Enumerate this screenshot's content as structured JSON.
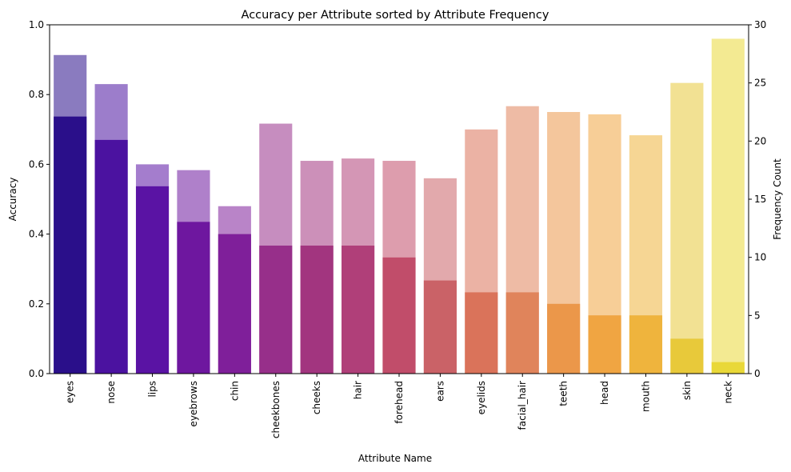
{
  "chart_data": {
    "type": "bar",
    "title": "Accuracy per Attribute sorted by Attribute Frequency",
    "xlabel": "Attribute Name",
    "ylabel": "Accuracy",
    "y2label": "Frequency Count",
    "categories": [
      "eyes",
      "nose",
      "lips",
      "eyebrows",
      "chin",
      "cheekbones",
      "cheeks",
      "hair",
      "forehead",
      "ears",
      "eyelids",
      "facial_hair",
      "teeth",
      "head",
      "mouth",
      "skin",
      "neck"
    ],
    "series": [
      {
        "name": "Accuracy",
        "axis": "left",
        "values": [
          0.737,
          0.67,
          0.537,
          0.435,
          0.4,
          0.367,
          0.367,
          0.367,
          0.333,
          0.267,
          0.233,
          0.233,
          0.2,
          0.167,
          0.167,
          0.1,
          0.033
        ]
      },
      {
        "name": "Frequency Count",
        "axis": "right",
        "values": [
          27.4,
          24.9,
          18.0,
          17.5,
          14.4,
          21.5,
          18.3,
          18.5,
          18.3,
          16.8,
          21.0,
          23.0,
          22.5,
          22.3,
          20.5,
          25.0,
          28.8
        ]
      }
    ],
    "ylim": [
      0,
      1.0
    ],
    "y2lim": [
      0,
      30
    ],
    "yticks": [
      0.0,
      0.2,
      0.4,
      0.6,
      0.8,
      1.0
    ],
    "y2ticks": [
      0,
      5,
      10,
      15,
      20,
      25,
      30
    ],
    "grid": false,
    "legend": "none",
    "colors": [
      "#2a0f8a",
      "#4b12a0",
      "#5a13a4",
      "#6e179f",
      "#7f1f9a",
      "#972f8a",
      "#a2357f",
      "#b03f79",
      "#c14d6a",
      "#ca6267",
      "#da735a",
      "#e0845b",
      "#eb974a",
      "#f0a542",
      "#efb43d",
      "#e8c93a",
      "#e9d838"
    ]
  }
}
